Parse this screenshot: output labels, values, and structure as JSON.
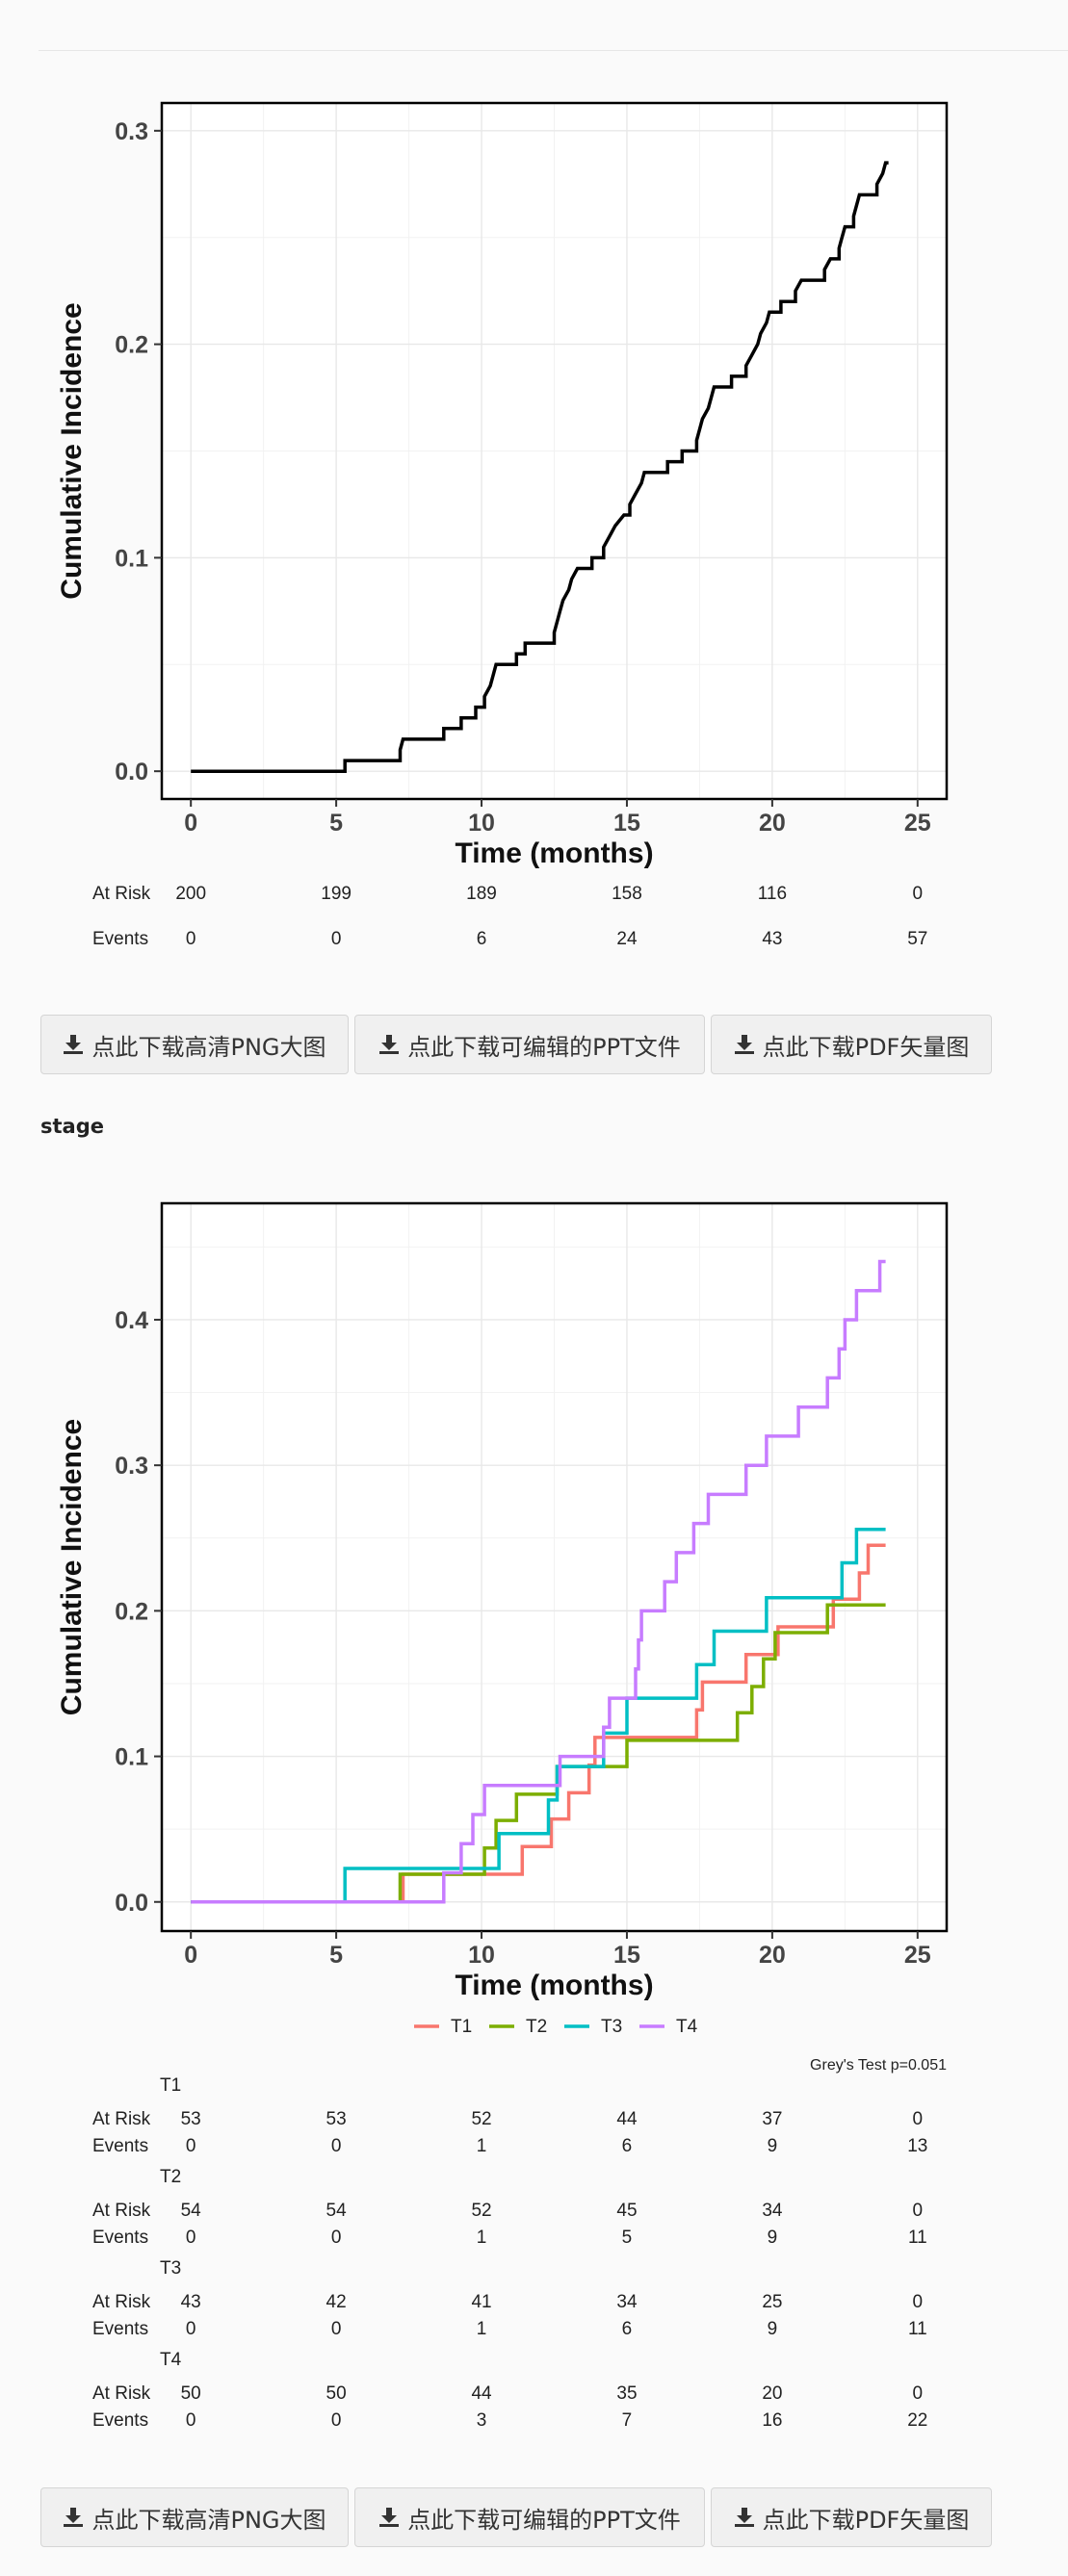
{
  "download_buttons": {
    "png": "点此下载高清PNG大图",
    "ppt": "点此下载可编辑的PPT文件",
    "pdf": "点此下载PDF矢量图"
  },
  "section_title": "stage",
  "chart1": {
    "chart_data": {
      "type": "line",
      "step": true,
      "xlabel": "Time (months)",
      "ylabel": "Cumulative Incidence",
      "xlim": [
        -1,
        26
      ],
      "ylim": [
        -0.013,
        0.313
      ],
      "xticks": [
        0,
        5,
        10,
        15,
        20,
        25
      ],
      "yticks": [
        0.0,
        0.1,
        0.2,
        0.3
      ],
      "ytick_labels": [
        "0.0",
        "0.1",
        "0.2",
        "0.3"
      ],
      "grid": true,
      "series": [
        {
          "color": "#000000",
          "points": [
            [
              0,
              0
            ],
            [
              5.3,
              0
            ],
            [
              5.3,
              0.005
            ],
            [
              7.2,
              0.005
            ],
            [
              7.2,
              0.01
            ],
            [
              7.3,
              0.015
            ],
            [
              8.7,
              0.015
            ],
            [
              8.7,
              0.02
            ],
            [
              9.3,
              0.02
            ],
            [
              9.3,
              0.025
            ],
            [
              9.8,
              0.025
            ],
            [
              9.8,
              0.03
            ],
            [
              10.1,
              0.03
            ],
            [
              10.1,
              0.035
            ],
            [
              10.3,
              0.04
            ],
            [
              10.4,
              0.045
            ],
            [
              10.5,
              0.05
            ],
            [
              11.2,
              0.05
            ],
            [
              11.2,
              0.055
            ],
            [
              11.5,
              0.055
            ],
            [
              11.5,
              0.06
            ],
            [
              12.5,
              0.06
            ],
            [
              12.5,
              0.065
            ],
            [
              12.6,
              0.07
            ],
            [
              12.7,
              0.075
            ],
            [
              12.8,
              0.08
            ],
            [
              13.0,
              0.085
            ],
            [
              13.1,
              0.09
            ],
            [
              13.3,
              0.095
            ],
            [
              13.8,
              0.095
            ],
            [
              13.8,
              0.1
            ],
            [
              14.2,
              0.1
            ],
            [
              14.2,
              0.105
            ],
            [
              14.4,
              0.11
            ],
            [
              14.6,
              0.115
            ],
            [
              14.9,
              0.12
            ],
            [
              15.1,
              0.12
            ],
            [
              15.1,
              0.125
            ],
            [
              15.3,
              0.13
            ],
            [
              15.5,
              0.135
            ],
            [
              15.6,
              0.14
            ],
            [
              16.4,
              0.14
            ],
            [
              16.4,
              0.145
            ],
            [
              16.9,
              0.145
            ],
            [
              16.9,
              0.15
            ],
            [
              17.4,
              0.15
            ],
            [
              17.4,
              0.155
            ],
            [
              17.5,
              0.16
            ],
            [
              17.6,
              0.165
            ],
            [
              17.8,
              0.17
            ],
            [
              17.9,
              0.175
            ],
            [
              18.0,
              0.18
            ],
            [
              18.6,
              0.18
            ],
            [
              18.6,
              0.185
            ],
            [
              19.1,
              0.185
            ],
            [
              19.1,
              0.19
            ],
            [
              19.3,
              0.195
            ],
            [
              19.5,
              0.2
            ],
            [
              19.6,
              0.205
            ],
            [
              19.8,
              0.21
            ],
            [
              19.9,
              0.215
            ],
            [
              20.3,
              0.215
            ],
            [
              20.3,
              0.22
            ],
            [
              20.8,
              0.22
            ],
            [
              20.8,
              0.225
            ],
            [
              21.0,
              0.23
            ],
            [
              21.8,
              0.23
            ],
            [
              21.8,
              0.235
            ],
            [
              22.0,
              0.24
            ],
            [
              22.3,
              0.24
            ],
            [
              22.3,
              0.245
            ],
            [
              22.4,
              0.25
            ],
            [
              22.5,
              0.255
            ],
            [
              22.8,
              0.255
            ],
            [
              22.8,
              0.26
            ],
            [
              22.9,
              0.265
            ],
            [
              23.0,
              0.27
            ],
            [
              23.6,
              0.27
            ],
            [
              23.6,
              0.275
            ],
            [
              23.8,
              0.28
            ],
            [
              23.9,
              0.285
            ],
            [
              24.0,
              0.285
            ]
          ]
        }
      ]
    },
    "risk_table": {
      "row_labels": [
        "At Risk",
        "Events"
      ],
      "times": [
        0,
        5,
        10,
        15,
        20,
        25
      ],
      "at_risk": [
        "200",
        "199",
        "189",
        "158",
        "116",
        "0"
      ],
      "events": [
        "0",
        "0",
        "6",
        "24",
        "43",
        "57"
      ]
    }
  },
  "chart2": {
    "chart_data": {
      "type": "line",
      "step": true,
      "xlabel": "Time (months)",
      "ylabel": "Cumulative Incidence",
      "xlim": [
        -1,
        26
      ],
      "ylim": [
        -0.02,
        0.48
      ],
      "xticks": [
        0,
        5,
        10,
        15,
        20,
        25
      ],
      "yticks": [
        0.0,
        0.1,
        0.2,
        0.3,
        0.4
      ],
      "ytick_labels": [
        "0.0",
        "0.1",
        "0.2",
        "0.3",
        "0.4"
      ],
      "grid": true,
      "legend_position": "bottom",
      "annotation": "Grey's Test p=0.051",
      "series": [
        {
          "name": "T1",
          "color": "#F8766D",
          "points": [
            [
              0,
              0
            ],
            [
              7.3,
              0
            ],
            [
              7.3,
              0.019
            ],
            [
              10.2,
              0.019
            ],
            [
              10.2,
              0.019
            ],
            [
              11.4,
              0.019
            ],
            [
              11.4,
              0.038
            ],
            [
              12.4,
              0.038
            ],
            [
              12.4,
              0.057
            ],
            [
              13.0,
              0.057
            ],
            [
              13.0,
              0.075
            ],
            [
              13.7,
              0.075
            ],
            [
              13.7,
              0.094
            ],
            [
              13.9,
              0.094
            ],
            [
              13.9,
              0.113
            ],
            [
              17.4,
              0.113
            ],
            [
              17.4,
              0.132
            ],
            [
              17.6,
              0.132
            ],
            [
              17.6,
              0.151
            ],
            [
              19.1,
              0.151
            ],
            [
              19.1,
              0.17
            ],
            [
              20.2,
              0.17
            ],
            [
              20.2,
              0.189
            ],
            [
              22.1,
              0.189
            ],
            [
              22.1,
              0.208
            ],
            [
              23.0,
              0.208
            ],
            [
              23.0,
              0.226
            ],
            [
              23.3,
              0.226
            ],
            [
              23.3,
              0.245
            ],
            [
              23.9,
              0.245
            ]
          ]
        },
        {
          "name": "T2",
          "color": "#7CAE00",
          "points": [
            [
              0,
              0
            ],
            [
              7.2,
              0
            ],
            [
              7.2,
              0.019
            ],
            [
              10.1,
              0.019
            ],
            [
              10.1,
              0.037
            ],
            [
              10.5,
              0.037
            ],
            [
              10.5,
              0.056
            ],
            [
              11.2,
              0.056
            ],
            [
              11.2,
              0.074
            ],
            [
              12.6,
              0.074
            ],
            [
              12.6,
              0.093
            ],
            [
              15.0,
              0.093
            ],
            [
              15.0,
              0.111
            ],
            [
              18.8,
              0.111
            ],
            [
              18.8,
              0.13
            ],
            [
              19.3,
              0.13
            ],
            [
              19.3,
              0.148
            ],
            [
              19.7,
              0.148
            ],
            [
              19.7,
              0.167
            ],
            [
              20.1,
              0.167
            ],
            [
              20.1,
              0.185
            ],
            [
              21.9,
              0.185
            ],
            [
              21.9,
              0.204
            ],
            [
              23.9,
              0.204
            ]
          ]
        },
        {
          "name": "T3",
          "color": "#00BFC4",
          "points": [
            [
              0,
              0
            ],
            [
              5.3,
              0
            ],
            [
              5.3,
              0.023
            ],
            [
              9.3,
              0.023
            ],
            [
              9.3,
              0.023
            ],
            [
              10.6,
              0.023
            ],
            [
              10.6,
              0.047
            ],
            [
              12.3,
              0.047
            ],
            [
              12.3,
              0.07
            ],
            [
              12.6,
              0.07
            ],
            [
              12.6,
              0.093
            ],
            [
              14.2,
              0.093
            ],
            [
              14.2,
              0.116
            ],
            [
              15.0,
              0.116
            ],
            [
              15.0,
              0.14
            ],
            [
              17.4,
              0.14
            ],
            [
              17.4,
              0.163
            ],
            [
              18.0,
              0.163
            ],
            [
              18.0,
              0.186
            ],
            [
              19.8,
              0.186
            ],
            [
              19.8,
              0.209
            ],
            [
              22.4,
              0.209
            ],
            [
              22.4,
              0.233
            ],
            [
              22.9,
              0.233
            ],
            [
              22.9,
              0.256
            ],
            [
              23.9,
              0.256
            ]
          ]
        },
        {
          "name": "T4",
          "color": "#C77CFF",
          "points": [
            [
              0,
              0
            ],
            [
              8.7,
              0
            ],
            [
              8.7,
              0.02
            ],
            [
              9.3,
              0.02
            ],
            [
              9.3,
              0.04
            ],
            [
              9.7,
              0.04
            ],
            [
              9.7,
              0.06
            ],
            [
              10.1,
              0.06
            ],
            [
              10.1,
              0.08
            ],
            [
              12.7,
              0.08
            ],
            [
              12.7,
              0.1
            ],
            [
              14.2,
              0.1
            ],
            [
              14.2,
              0.12
            ],
            [
              14.4,
              0.12
            ],
            [
              14.4,
              0.14
            ],
            [
              15.3,
              0.14
            ],
            [
              15.3,
              0.16
            ],
            [
              15.4,
              0.16
            ],
            [
              15.4,
              0.18
            ],
            [
              15.5,
              0.18
            ],
            [
              15.5,
              0.2
            ],
            [
              16.3,
              0.2
            ],
            [
              16.3,
              0.22
            ],
            [
              16.7,
              0.22
            ],
            [
              16.7,
              0.24
            ],
            [
              17.3,
              0.24
            ],
            [
              17.3,
              0.26
            ],
            [
              17.8,
              0.26
            ],
            [
              17.8,
              0.28
            ],
            [
              19.1,
              0.28
            ],
            [
              19.1,
              0.3
            ],
            [
              19.8,
              0.3
            ],
            [
              19.8,
              0.32
            ],
            [
              20.9,
              0.32
            ],
            [
              20.9,
              0.34
            ],
            [
              21.9,
              0.34
            ],
            [
              21.9,
              0.36
            ],
            [
              22.3,
              0.36
            ],
            [
              22.3,
              0.38
            ],
            [
              22.5,
              0.38
            ],
            [
              22.5,
              0.4
            ],
            [
              22.9,
              0.4
            ],
            [
              22.9,
              0.42
            ],
            [
              23.7,
              0.42
            ],
            [
              23.7,
              0.44
            ],
            [
              23.9,
              0.44
            ]
          ]
        }
      ]
    },
    "risk_table": {
      "row_labels": [
        "At Risk",
        "Events"
      ],
      "times": [
        0,
        5,
        10,
        15,
        20,
        25
      ],
      "groups": [
        {
          "name": "T1",
          "at_risk": [
            "53",
            "53",
            "52",
            "44",
            "37",
            "0"
          ],
          "events": [
            "0",
            "0",
            "1",
            "6",
            "9",
            "13"
          ]
        },
        {
          "name": "T2",
          "at_risk": [
            "54",
            "54",
            "52",
            "45",
            "34",
            "0"
          ],
          "events": [
            "0",
            "0",
            "1",
            "5",
            "9",
            "11"
          ]
        },
        {
          "name": "T3",
          "at_risk": [
            "43",
            "42",
            "41",
            "34",
            "25",
            "0"
          ],
          "events": [
            "0",
            "0",
            "1",
            "6",
            "9",
            "11"
          ]
        },
        {
          "name": "T4",
          "at_risk": [
            "50",
            "50",
            "44",
            "35",
            "20",
            "0"
          ],
          "events": [
            "0",
            "0",
            "3",
            "7",
            "16",
            "22"
          ]
        }
      ]
    }
  }
}
